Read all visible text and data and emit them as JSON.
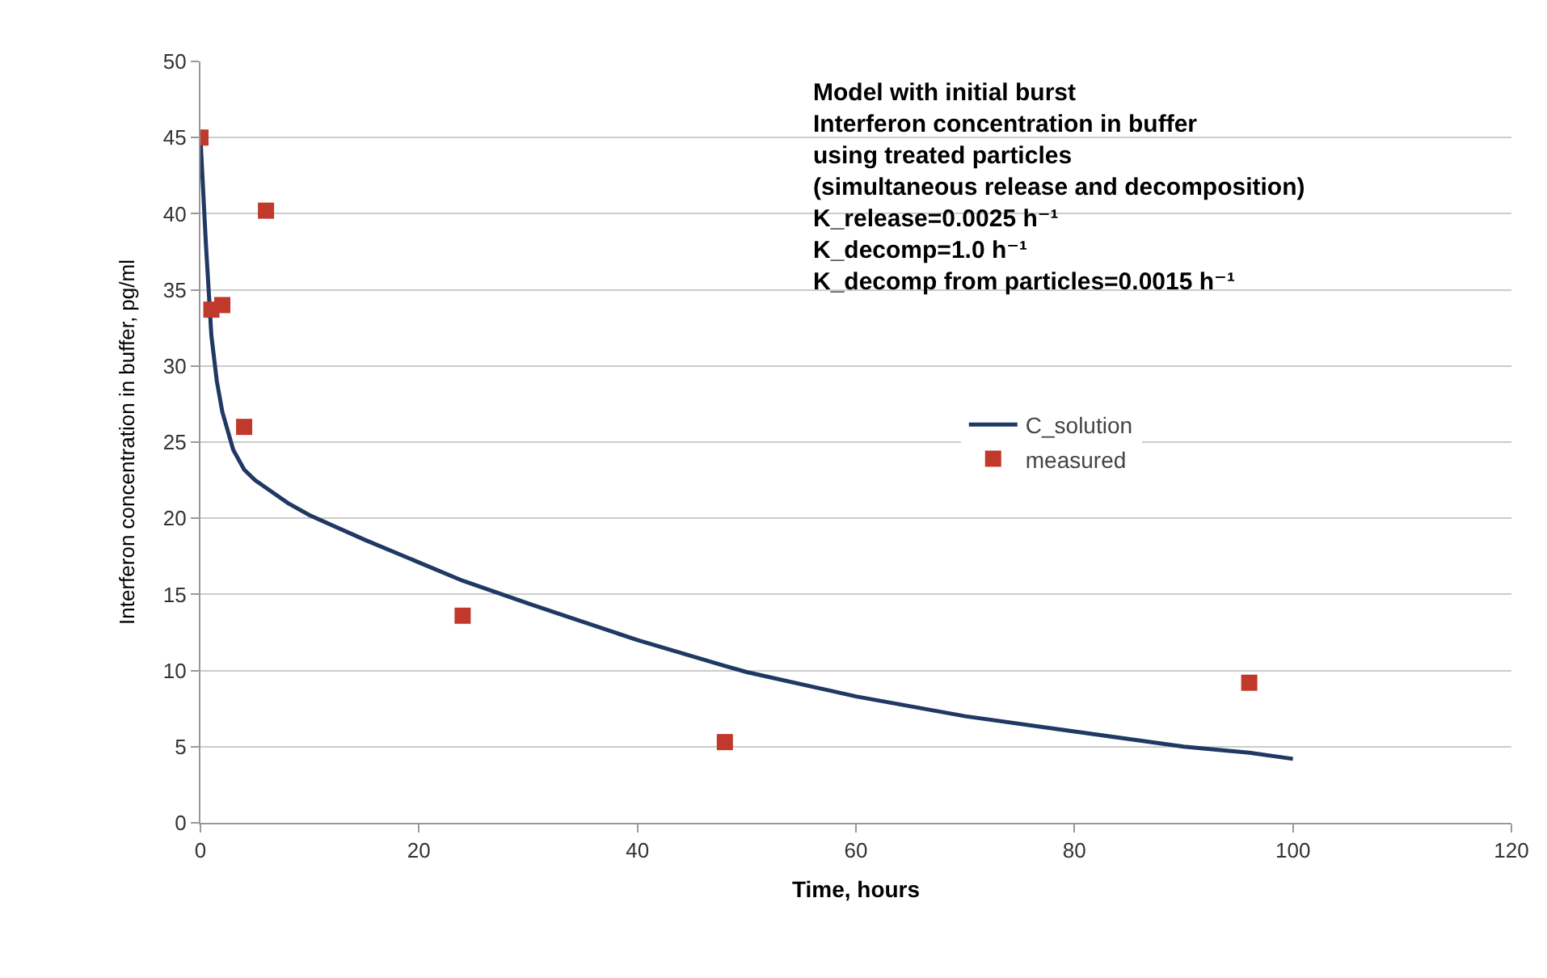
{
  "chart_data": {
    "type": "line",
    "xlabel": "Time, hours",
    "ylabel": "Interferon concentration in buffer, pg/ml",
    "annotations": [
      "Model with initial burst\nInterferon concentration in buffer\nusing treated particles\n(simultaneous release and decomposition)\nK_release=0.0025 h⁻¹\nK_decomp=1.0 h⁻¹\nK_decomp from particles=0.0015 h⁻¹"
    ],
    "series": [
      {
        "name": "C_solution",
        "color": "#1f3864",
        "marker": "none",
        "x": [
          0,
          0.5,
          1,
          1.5,
          2,
          3,
          4,
          5,
          6,
          8,
          10,
          15,
          20,
          24,
          30,
          40,
          48,
          50,
          60,
          70,
          80,
          90,
          96,
          100
        ],
        "values": [
          45,
          38,
          32,
          29,
          27,
          24.5,
          23.2,
          22.5,
          22,
          21,
          20.2,
          18.6,
          17.1,
          15.9,
          14.4,
          12,
          10.3,
          9.9,
          8.3,
          7,
          6,
          5,
          4.6,
          4.2
        ]
      },
      {
        "name": "measured",
        "type": "scatter",
        "color": "#c0392b",
        "marker": "square",
        "x": [
          0,
          1,
          2,
          4,
          6,
          24,
          48,
          96
        ],
        "values": [
          45,
          33.7,
          34,
          26,
          40.2,
          13.6,
          5.3,
          9.2
        ]
      }
    ],
    "xlim": [
      0,
      120
    ],
    "xticks": [
      0,
      20,
      40,
      60,
      80,
      100,
      120
    ],
    "ylim": [
      0,
      50
    ],
    "yticks": [
      0,
      5,
      10,
      15,
      20,
      25,
      30,
      35,
      40,
      45,
      50
    ],
    "grid": "y",
    "legend": "right"
  }
}
